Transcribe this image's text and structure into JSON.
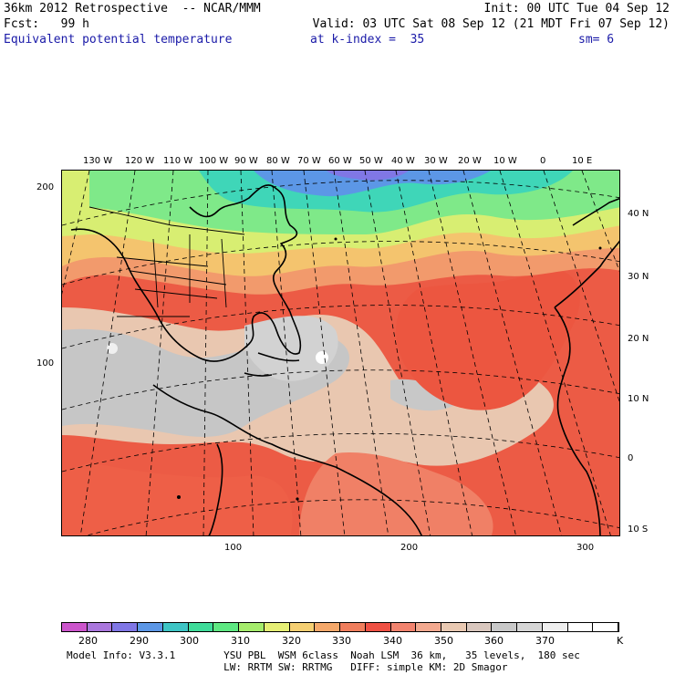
{
  "header": {
    "line1_left": "36km 2012 Retrospective  -- NCAR/MMM",
    "line1_right": "Init: 00 UTC Tue 04 Sep 12",
    "line2_left": "Fcst:   99 h",
    "line2_right": "Valid: 03 UTC Sat 08 Sep 12 (21 MDT Fri 07 Sep 12)",
    "field": "Equivalent potential temperature",
    "level": "at k-index =  35",
    "smoothing": "sm= 6"
  },
  "map": {
    "lon_labels": [
      "130 W",
      "120 W",
      "110 W",
      "100 W",
      "90 W",
      "80 W",
      "70 W",
      "60 W",
      "50 W",
      "40 W",
      "30 W",
      "20 W",
      "10 W",
      "0",
      "10 E"
    ],
    "lat_labels": [
      "40 N",
      "30 N",
      "20 N",
      "10 N",
      "0",
      "10 S"
    ],
    "left_axis": [
      "200",
      "100"
    ],
    "bottom_axis": [
      "100",
      "200",
      "300"
    ],
    "features": [
      "hurricane-eye-warm-core",
      "north-america-outline",
      "south-america-outline",
      "africa-outline",
      "europe-outline"
    ]
  },
  "colorbar": {
    "labels": [
      "280",
      "290",
      "300",
      "310",
      "320",
      "330",
      "340",
      "350",
      "360",
      "370"
    ],
    "unit": "K",
    "colors": [
      "#cc55cc",
      "#aa77dd",
      "#8077e6",
      "#5c97e6",
      "#3ec5c5",
      "#3fdc9a",
      "#5ee882",
      "#a5ec6c",
      "#e6ef75",
      "#f5cf72",
      "#f5a86a",
      "#f07e5d",
      "#ef5144",
      "#f2836e",
      "#f3a98f",
      "#e9c9b2",
      "#d9c7be",
      "#c8c8c8",
      "#d6d6d6",
      "#eeeeee",
      "#ffffff",
      "#ffffff"
    ]
  },
  "footer": {
    "line1": "Model Info: V3.3.1        YSU PBL  WSM 6class  Noah LSM  36 km,   35 levels,  180 sec",
    "line2": "                          LW: RRTM SW: RRTMG   DIFF: simple KM: 2D Smagor"
  }
}
